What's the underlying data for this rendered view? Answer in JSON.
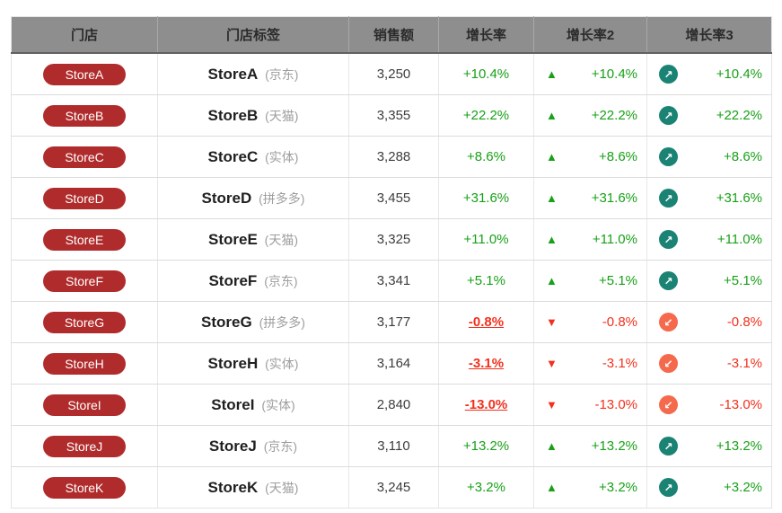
{
  "table": {
    "columns": [
      "门店",
      "门店标签",
      "销售额",
      "增长率",
      "增长率2",
      "增长率3"
    ],
    "icons": {
      "up_triangle_icon": "▲",
      "down_triangle_icon": "▼",
      "up_arrow_icon": "↗",
      "down_arrow_icon": "↙"
    },
    "colors": {
      "header_bg": "#8e8e8e",
      "pill_bg": "#b02c2c",
      "positive_green": "#18a018",
      "negative_red": "#f2301d",
      "circle_up": "#1b8374",
      "circle_down": "#f56a4d"
    },
    "rows": [
      {
        "store": "StoreA",
        "platform": "(京东)",
        "sales": "3,250",
        "growth": "+10.4%",
        "trend": "up"
      },
      {
        "store": "StoreB",
        "platform": "(天猫)",
        "sales": "3,355",
        "growth": "+22.2%",
        "trend": "up"
      },
      {
        "store": "StoreC",
        "platform": "(实体)",
        "sales": "3,288",
        "growth": "+8.6%",
        "trend": "up"
      },
      {
        "store": "StoreD",
        "platform": "(拼多多)",
        "sales": "3,455",
        "growth": "+31.6%",
        "trend": "up"
      },
      {
        "store": "StoreE",
        "platform": "(天猫)",
        "sales": "3,325",
        "growth": "+11.0%",
        "trend": "up"
      },
      {
        "store": "StoreF",
        "platform": "(京东)",
        "sales": "3,341",
        "growth": "+5.1%",
        "trend": "up"
      },
      {
        "store": "StoreG",
        "platform": "(拼多多)",
        "sales": "3,177",
        "growth": "-0.8%",
        "trend": "down"
      },
      {
        "store": "StoreH",
        "platform": "(实体)",
        "sales": "3,164",
        "growth": "-3.1%",
        "trend": "down"
      },
      {
        "store": "StoreI",
        "platform": "(实体)",
        "sales": "2,840",
        "growth": "-13.0%",
        "trend": "down"
      },
      {
        "store": "StoreJ",
        "platform": "(京东)",
        "sales": "3,110",
        "growth": "+13.2%",
        "trend": "up"
      },
      {
        "store": "StoreK",
        "platform": "(天猫)",
        "sales": "3,245",
        "growth": "+3.2%",
        "trend": "up"
      }
    ]
  }
}
